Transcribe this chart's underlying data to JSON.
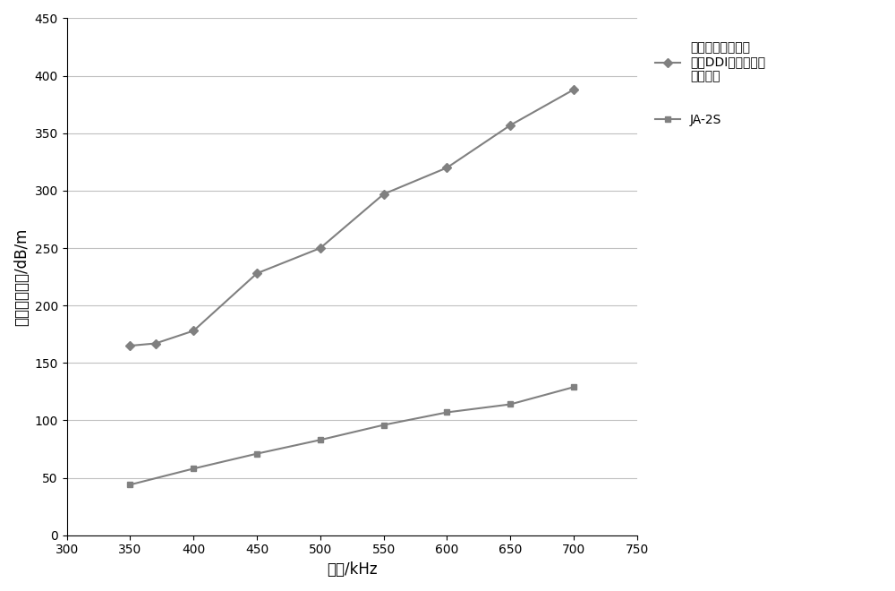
{
  "title": "",
  "xlabel": "频率/kHz",
  "ylabel": "纵波衰减系数/dB/m",
  "xlim": [
    300,
    750
  ],
  "ylim": [
    0,
    450
  ],
  "xticks": [
    300,
    350,
    400,
    450,
    500,
    550,
    600,
    650,
    700,
    750
  ],
  "yticks": [
    0,
    50,
    100,
    150,
    200,
    250,
    300,
    350,
    400,
    450
  ],
  "series1": {
    "x": [
      350,
      370,
      400,
      450,
      500,
      550,
      600,
      650,
      700
    ],
    "y": [
      165,
      167,
      178,
      228,
      250,
      297,
      320,
      357,
      388
    ],
    "label1": "基于二聚二异氰酸",
    "label2": "酯（DDI）的聚氨酯",
    "label3": "凝胶材料",
    "color": "#808080",
    "marker": "D",
    "linewidth": 1.5,
    "markersize": 5
  },
  "series2": {
    "x": [
      350,
      400,
      450,
      500,
      550,
      600,
      650,
      700
    ],
    "y": [
      44,
      58,
      71,
      83,
      96,
      107,
      114,
      129
    ],
    "label": "JA-2S",
    "color": "#808080",
    "marker": "s",
    "linewidth": 1.5,
    "markersize": 5
  },
  "background_color": "#ffffff",
  "grid_color": "#c0c0c0",
  "legend_fontsize": 10,
  "axis_fontsize": 12,
  "tick_fontsize": 10
}
